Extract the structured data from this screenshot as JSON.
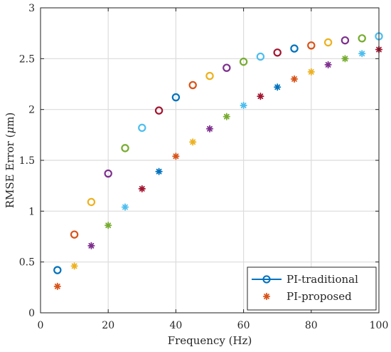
{
  "chart_data": {
    "type": "scatter",
    "xlabel": "Frequency (Hz)",
    "ylabel_prefix": "RMSE Error (",
    "ylabel_mu": "μ",
    "ylabel_suffix": "m)",
    "xlim": [
      0,
      100
    ],
    "ylim": [
      0,
      3
    ],
    "xticks": [
      0,
      20,
      40,
      60,
      80,
      100
    ],
    "yticks": [
      0,
      0.5,
      1,
      1.5,
      2,
      2.5,
      3
    ],
    "ytick_labels": [
      "0",
      "0.5",
      "1",
      "1.5",
      "2",
      "2.5",
      "3"
    ],
    "grid": true,
    "legend_position": "bottom-right",
    "point_colors": [
      "#0072BD",
      "#D95319",
      "#EDB120",
      "#7E2F8E",
      "#77AC30",
      "#4DBEEE",
      "#A2142F"
    ],
    "series": [
      {
        "name": "PI-traditional",
        "marker": "open-circle",
        "legend_color": "#0072BD",
        "x": [
          5,
          10,
          15,
          20,
          25,
          30,
          35,
          40,
          45,
          50,
          55,
          60,
          65,
          70,
          75,
          80,
          85,
          90,
          95,
          100
        ],
        "y": [
          0.42,
          0.77,
          1.09,
          1.37,
          1.62,
          1.82,
          1.99,
          2.12,
          2.24,
          2.33,
          2.41,
          2.47,
          2.52,
          2.56,
          2.6,
          2.63,
          2.66,
          2.68,
          2.7,
          2.72
        ]
      },
      {
        "name": "PI-proposed",
        "marker": "asterisk",
        "legend_color": "#D95319",
        "x": [
          5,
          10,
          15,
          20,
          25,
          30,
          35,
          40,
          45,
          50,
          55,
          60,
          65,
          70,
          75,
          80,
          85,
          90,
          95,
          100
        ],
        "y": [
          0.26,
          0.46,
          0.66,
          0.86,
          1.04,
          1.22,
          1.39,
          1.54,
          1.68,
          1.81,
          1.93,
          2.04,
          2.13,
          2.22,
          2.3,
          2.37,
          2.44,
          2.5,
          2.55,
          2.59
        ]
      }
    ]
  }
}
